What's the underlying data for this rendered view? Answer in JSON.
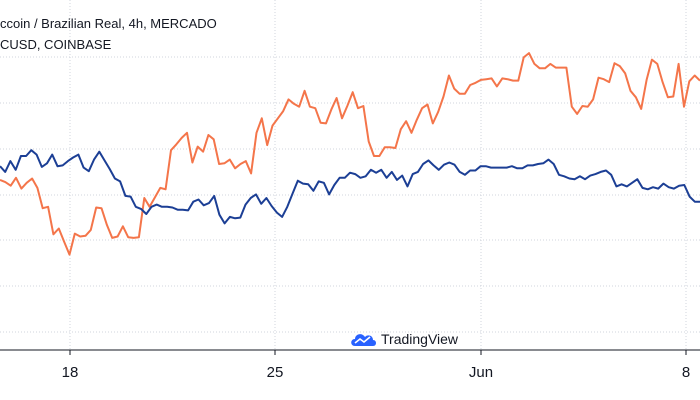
{
  "legend": [
    {
      "text": "ccoin / Brazilian Real, 4h, MERCADO"
    },
    {
      "text": "CUSD, COINBASE"
    }
  ],
  "watermark": {
    "text": "TradingView"
  },
  "colors": {
    "series_a": "#f4754a",
    "series_b": "#1c3f95",
    "grid": "#d1d4dc",
    "axis": "#131722"
  },
  "chart_data": {
    "type": "line",
    "x_ticks": [
      "18",
      "25",
      "Jun",
      "8"
    ],
    "grid": true,
    "legend_position": "top-left",
    "y_axis_labels_visible": false,
    "series": [
      {
        "values": [
          207,
          204,
          199,
          210,
          195,
          203,
          209,
          196,
          168,
          170,
          132,
          140,
          122,
          104,
          133,
          129,
          130,
          138,
          169,
          168,
          145,
          127,
          129,
          143,
          128,
          127,
          128,
          182,
          170,
          183,
          196,
          194,
          248,
          256,
          265,
          272,
          231,
          253,
          246,
          269,
          263,
          229,
          230,
          235,
          223,
          229,
          233,
          216,
          272,
          292,
          255,
          282,
          292,
          302,
          318,
          312,
          308,
          330,
          308,
          306,
          286,
          285,
          304,
          320,
          292,
          309,
          328,
          306,
          309,
          260,
          240,
          240,
          252,
          252,
          251,
          277,
          288,
          272,
          290,
          306,
          311,
          285,
          301,
          322,
          351,
          333,
          326,
          326,
          338,
          341,
          345,
          346,
          347,
          336,
          347,
          346,
          344,
          344,
          376,
          382,
          367,
          361,
          361,
          367,
          362,
          362,
          362,
          308,
          298,
          309,
          308,
          318,
          348,
          346,
          342,
          368,
          364,
          354,
          330,
          321,
          305,
          345,
          373,
          367,
          342,
          321,
          322,
          367,
          308,
          343,
          351,
          344
        ]
      },
      {
        "values": [
          226,
          218,
          233,
          221,
          240,
          240,
          248,
          242,
          225,
          230,
          242,
          226,
          227,
          233,
          238,
          242,
          224,
          219,
          235,
          246,
          234,
          222,
          209,
          205,
          185,
          184,
          170,
          167,
          160,
          170,
          173,
          170,
          170,
          169,
          166,
          166,
          165,
          177,
          180,
          172,
          175,
          185,
          159,
          147,
          156,
          154,
          155,
          173,
          182,
          187,
          174,
          182,
          171,
          162,
          156,
          170,
          188,
          206,
          202,
          201,
          192,
          205,
          203,
          187,
          200,
          210,
          210,
          217,
          215,
          210,
          212,
          221,
          217,
          221,
          210,
          218,
          207,
          213,
          198,
          215,
          218,
          229,
          234,
          227,
          221,
          228,
          231,
          228,
          218,
          214,
          220,
          220,
          226,
          226,
          224,
          224,
          224,
          224,
          226,
          223,
          223,
          227,
          227,
          229,
          230,
          235,
          229,
          214,
          212,
          209,
          208,
          212,
          208,
          213,
          215,
          218,
          220,
          214,
          198,
          201,
          198,
          203,
          208,
          196,
          194,
          197,
          195,
          202,
          197,
          195,
          199,
          200,
          184,
          177,
          177
        ]
      }
    ]
  }
}
